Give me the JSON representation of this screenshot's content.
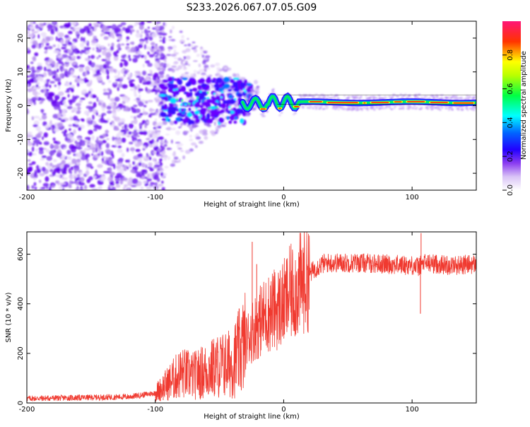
{
  "title": "S233.2026.067.07.05.G09",
  "chart_data": [
    {
      "type": "heatmap",
      "id": "spectrogram",
      "xlabel": "Height of straight line (km)",
      "ylabel": "Frequency (Hz)",
      "xlim": [
        -200,
        150
      ],
      "ylim": [
        -25,
        25
      ],
      "xticks": [
        -200,
        -100,
        0,
        100
      ],
      "yticks": [
        -20,
        -10,
        0,
        10,
        20
      ],
      "colorbar": {
        "label": "Normalized spectral amplitude",
        "range": [
          0,
          1
        ],
        "ticks": [
          0.0,
          0.2,
          0.4,
          0.6,
          0.8
        ],
        "tick_labels": [
          "0.0",
          "0.2",
          "0.4",
          "0.6",
          "0.8"
        ],
        "colormap": [
          "#f4eefc",
          "#c9a6f2",
          "#8a3cf0",
          "#6a00ff",
          "#0000ff",
          "#00ffff",
          "#00ff66",
          "#ffff00",
          "#ff0000",
          "#ff1466"
        ]
      },
      "description_values": {
        "noise_region_x": [
          -200,
          -100
        ],
        "cluster_region_x": [
          -95,
          -25
        ],
        "cluster_freq_range": [
          -5,
          8
        ],
        "tone_region_x": [
          -20,
          150
        ],
        "tone_freq": 1
      }
    },
    {
      "type": "line",
      "id": "snr",
      "xlabel": "Height of straight line (km)",
      "ylabel": "SNR (10 * v/v)",
      "xlim": [
        -200,
        150
      ],
      "ylim": [
        0,
        690
      ],
      "xticks": [
        -200,
        -100,
        0,
        100
      ],
      "yticks": [
        0,
        200,
        400,
        600
      ],
      "color": "#f03a30",
      "profile": {
        "x": [
          -200,
          -150,
          -120,
          -100,
          -90,
          -80,
          -70,
          -60,
          -50,
          -40,
          -35,
          -30,
          -25,
          -20,
          -15,
          -10,
          -5,
          0,
          5,
          10,
          15,
          20,
          25,
          30,
          35,
          40,
          60,
          80,
          100,
          105,
          110,
          130,
          150
        ],
        "y": [
          18,
          22,
          25,
          40,
          80,
          120,
          110,
          130,
          150,
          160,
          200,
          240,
          290,
          320,
          350,
          370,
          380,
          400,
          440,
          460,
          490,
          520,
          545,
          560,
          565,
          565,
          565,
          560,
          555,
          550,
          565,
          555,
          560
        ]
      },
      "spikes": [
        {
          "x": -24.5,
          "y": 650
        },
        {
          "x": -21,
          "y": 560
        },
        {
          "x": 107,
          "y": 685
        },
        {
          "x": 106.5,
          "y": 360
        }
      ]
    }
  ]
}
